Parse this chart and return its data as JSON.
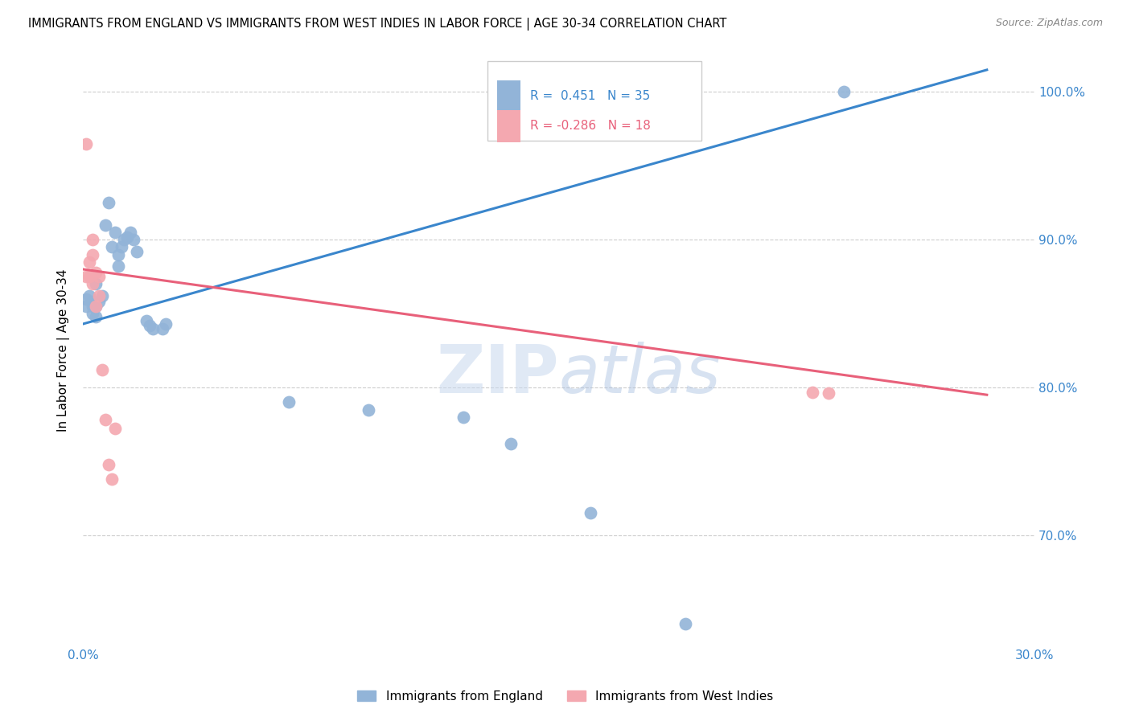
{
  "title": "IMMIGRANTS FROM ENGLAND VS IMMIGRANTS FROM WEST INDIES IN LABOR FORCE | AGE 30-34 CORRELATION CHART",
  "source": "Source: ZipAtlas.com",
  "ylabel": "In Labor Force | Age 30-34",
  "xlim": [
    0.0,
    0.3
  ],
  "ylim": [
    0.625,
    1.025
  ],
  "yticks": [
    0.7,
    0.8,
    0.9,
    1.0
  ],
  "yticklabels": [
    "70.0%",
    "80.0%",
    "90.0%",
    "100.0%"
  ],
  "grid_color": "#cccccc",
  "watermark": "ZIPatlas",
  "legend_blue_r": "0.451",
  "legend_blue_n": "35",
  "legend_pink_r": "-0.286",
  "legend_pink_n": "18",
  "blue_color": "#92b4d8",
  "pink_color": "#f4a8b0",
  "blue_line_color": "#3a86cc",
  "pink_line_color": "#e8607a",
  "blue_scatter": [
    [
      0.001,
      0.86
    ],
    [
      0.001,
      0.855
    ],
    [
      0.002,
      0.862
    ],
    [
      0.003,
      0.85
    ],
    [
      0.003,
      0.858
    ],
    [
      0.003,
      0.855
    ],
    [
      0.004,
      0.855
    ],
    [
      0.004,
      0.848
    ],
    [
      0.004,
      0.87
    ],
    [
      0.005,
      0.858
    ],
    [
      0.006,
      0.862
    ],
    [
      0.007,
      0.91
    ],
    [
      0.008,
      0.925
    ],
    [
      0.009,
      0.895
    ],
    [
      0.01,
      0.905
    ],
    [
      0.011,
      0.89
    ],
    [
      0.011,
      0.882
    ],
    [
      0.012,
      0.895
    ],
    [
      0.013,
      0.9
    ],
    [
      0.014,
      0.902
    ],
    [
      0.015,
      0.905
    ],
    [
      0.016,
      0.9
    ],
    [
      0.017,
      0.892
    ],
    [
      0.02,
      0.845
    ],
    [
      0.021,
      0.842
    ],
    [
      0.022,
      0.84
    ],
    [
      0.025,
      0.84
    ],
    [
      0.026,
      0.843
    ],
    [
      0.065,
      0.79
    ],
    [
      0.09,
      0.785
    ],
    [
      0.12,
      0.78
    ],
    [
      0.135,
      0.762
    ],
    [
      0.16,
      0.715
    ],
    [
      0.19,
      0.64
    ],
    [
      0.24,
      1.0
    ]
  ],
  "pink_scatter": [
    [
      0.001,
      0.965
    ],
    [
      0.001,
      0.875
    ],
    [
      0.002,
      0.875
    ],
    [
      0.002,
      0.885
    ],
    [
      0.003,
      0.9
    ],
    [
      0.003,
      0.89
    ],
    [
      0.003,
      0.87
    ],
    [
      0.004,
      0.878
    ],
    [
      0.004,
      0.855
    ],
    [
      0.005,
      0.875
    ],
    [
      0.005,
      0.862
    ],
    [
      0.006,
      0.812
    ],
    [
      0.007,
      0.778
    ],
    [
      0.008,
      0.748
    ],
    [
      0.009,
      0.738
    ],
    [
      0.01,
      0.772
    ],
    [
      0.23,
      0.797
    ],
    [
      0.235,
      0.796
    ]
  ],
  "blue_line": [
    [
      0.0,
      0.843
    ],
    [
      0.285,
      1.015
    ]
  ],
  "pink_line": [
    [
      0.0,
      0.88
    ],
    [
      0.285,
      0.795
    ]
  ]
}
